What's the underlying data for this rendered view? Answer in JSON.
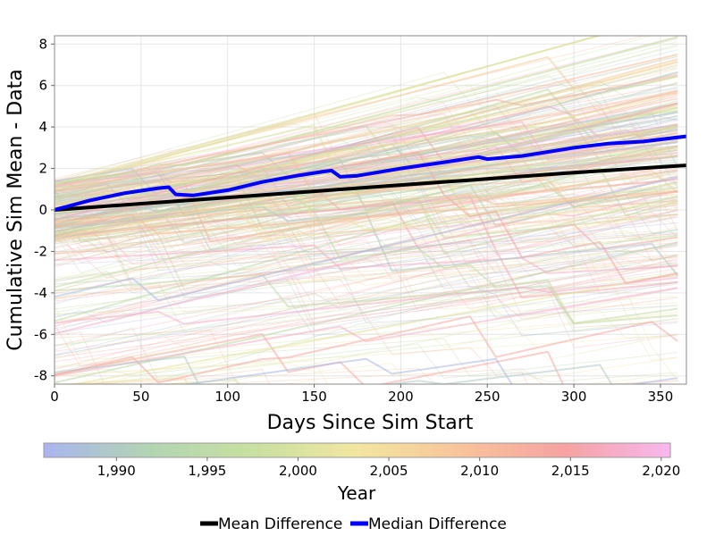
{
  "chart_data": {
    "type": "line",
    "title": "",
    "xlabel": "Days Since Sim Start",
    "ylabel": "Cumulative Sim Mean - Data",
    "xlim": [
      0,
      365
    ],
    "ylim": [
      -8.4,
      8.4
    ],
    "x_ticks": [
      0,
      50,
      100,
      150,
      200,
      250,
      300,
      350
    ],
    "y_ticks": [
      -8,
      -6,
      -4,
      -2,
      0,
      2,
      4,
      6,
      8
    ],
    "grid": true,
    "legend_position": "bottom-center",
    "series": [
      {
        "name": "Mean Difference",
        "color": "#000000",
        "x": [
          0,
          50,
          100,
          150,
          200,
          250,
          300,
          365
        ],
        "y": [
          0,
          0.3,
          0.6,
          0.9,
          1.2,
          1.5,
          1.8,
          2.15
        ]
      },
      {
        "name": "Median Difference",
        "color": "#0000ff",
        "x": [
          0,
          20,
          40,
          60,
          66,
          70,
          80,
          100,
          120,
          140,
          155,
          160,
          165,
          175,
          200,
          225,
          245,
          250,
          270,
          300,
          320,
          340,
          365
        ],
        "y": [
          0,
          0.45,
          0.8,
          1.05,
          1.1,
          0.75,
          0.7,
          0.95,
          1.35,
          1.65,
          1.85,
          1.9,
          1.6,
          1.65,
          2.0,
          2.3,
          2.55,
          2.45,
          2.6,
          3.0,
          3.2,
          3.3,
          3.55
        ]
      }
    ],
    "background_trajectories": {
      "description_color_by": "year",
      "color_range_years": [
        1986,
        2020
      ]
    },
    "colorbar": {
      "label": "Year",
      "range": [
        1986,
        2020.5
      ],
      "tick_values": [
        1990,
        1995,
        2000,
        2005,
        2010,
        2015,
        2020
      ],
      "tick_labels": [
        "1,990",
        "1,995",
        "2,000",
        "2,005",
        "2,010",
        "2,015",
        "2,020"
      ],
      "colors": [
        "#aab4f0",
        "#b2d4b2",
        "#c8e0a0",
        "#f2e6a0",
        "#f8c39a",
        "#f6a2a2",
        "#f8b8f0"
      ]
    }
  }
}
